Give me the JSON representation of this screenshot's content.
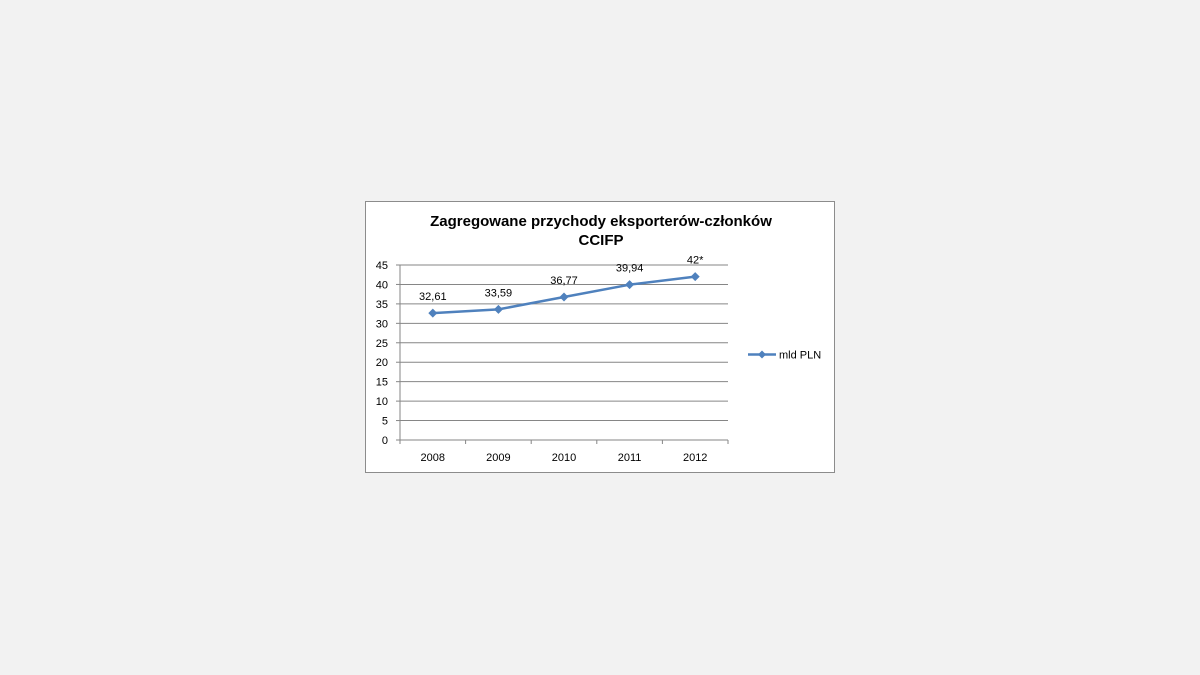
{
  "chart_data": {
    "type": "line",
    "title_lines": [
      "Zagregowane przychody eksporterów-członków",
      "CCIFP"
    ],
    "categories": [
      "2008",
      "2009",
      "2010",
      "2011",
      "2012"
    ],
    "series": [
      {
        "name": "mld PLN",
        "values": [
          32.61,
          33.59,
          36.77,
          39.94,
          42
        ],
        "labels": [
          "32,61",
          "33,59",
          "36,77",
          "39,94",
          "42*"
        ],
        "color": "#4f81bd"
      }
    ],
    "y_ticks": [
      "0",
      "5",
      "10",
      "15",
      "20",
      "25",
      "30",
      "35",
      "40",
      "45"
    ],
    "ylim": [
      0,
      45
    ],
    "ystep": 5,
    "grid": true,
    "legend_position": "right",
    "xlabel": "",
    "ylabel": ""
  }
}
